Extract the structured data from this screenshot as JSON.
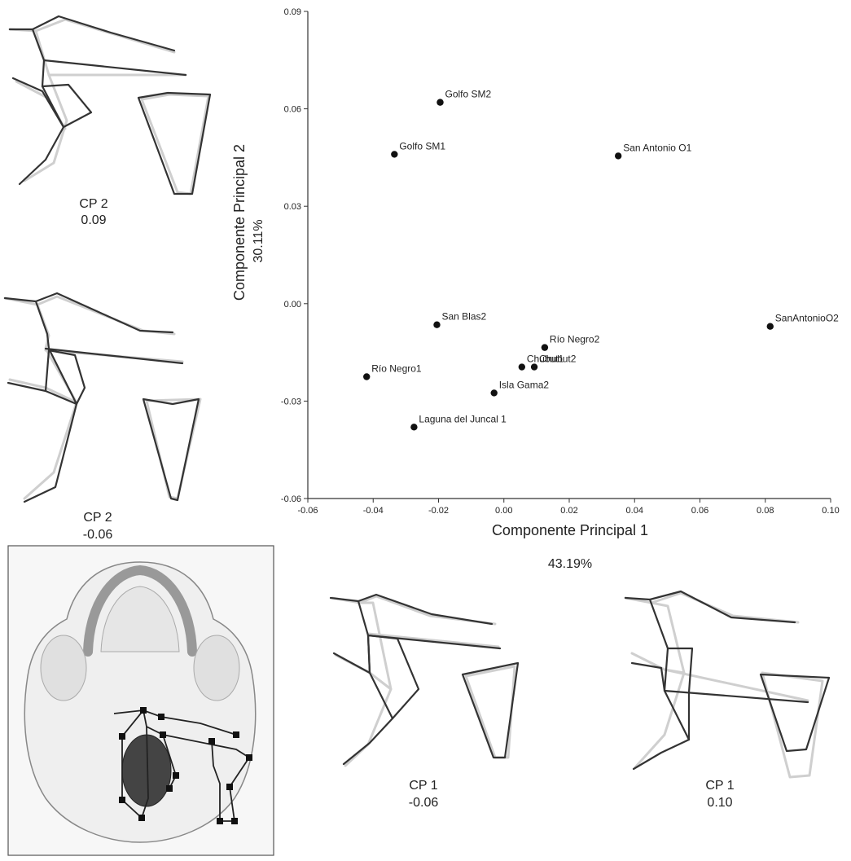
{
  "chart_data": {
    "type": "scatter",
    "xlabel": "Componente Principal 1",
    "ylabel": "Componente Principal 2",
    "x_variance": "43.19%",
    "y_variance": "30.11%",
    "xlim": [
      -0.06,
      0.1
    ],
    "ylim": [
      -0.06,
      0.09
    ],
    "x_ticks": [
      "-0.06",
      "-0.04",
      "-0.02",
      "0.00",
      "0.02",
      "0.04",
      "0.06",
      "0.08",
      "0.10"
    ],
    "y_ticks": [
      "0.09",
      "0.06",
      "0.03",
      "0.00",
      "-0.03",
      "-0.06"
    ],
    "points": [
      {
        "label": "Golfo SM2",
        "x": -0.0195,
        "y": 0.062
      },
      {
        "label": "Golfo SM1",
        "x": -0.0335,
        "y": 0.046
      },
      {
        "label": "San Antonio O1",
        "x": 0.035,
        "y": 0.0455
      },
      {
        "label": "San Blas2",
        "x": -0.0205,
        "y": -0.0065
      },
      {
        "label": "Río Negro2",
        "x": 0.0125,
        "y": -0.0135
      },
      {
        "label": "SanAntonioO2",
        "x": 0.0815,
        "y": -0.007
      },
      {
        "label": "Chubut1",
        "x": 0.0055,
        "y": -0.0195
      },
      {
        "label": "Chubut2",
        "x": 0.0093,
        "y": -0.0195
      },
      {
        "label": "Río Negro1",
        "x": -0.042,
        "y": -0.0225
      },
      {
        "label": "Isla Gama2",
        "x": -0.003,
        "y": -0.0275
      },
      {
        "label": "Laguna del Juncal 1",
        "x": -0.0275,
        "y": -0.038
      }
    ]
  },
  "panels": {
    "cp2_pos": {
      "title": "CP 2",
      "value": "0.09"
    },
    "cp2_neg": {
      "title": "CP 2",
      "value": "-0.06"
    },
    "cp1_neg": {
      "title": "CP 1",
      "value": "-0.06"
    },
    "cp1_pos": {
      "title": "CP 1",
      "value": "0.10"
    }
  }
}
